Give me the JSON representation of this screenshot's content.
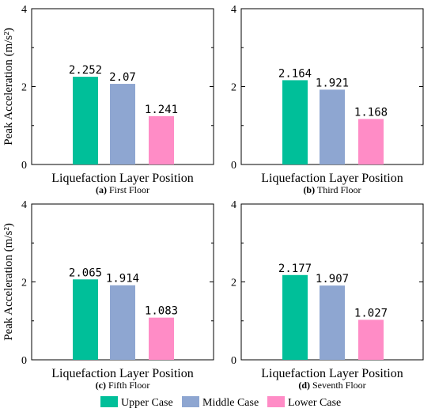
{
  "chart_data": [
    {
      "type": "bar",
      "caption_letter": "(a)",
      "caption_text": " First Floor",
      "categories": [
        "Liquefaction Layer Position"
      ],
      "series": [
        {
          "name": "Upper Case",
          "values": [
            2.252
          ],
          "labels": [
            "2.252"
          ]
        },
        {
          "name": "Middle Case",
          "values": [
            2.07
          ],
          "labels": [
            "2.07"
          ]
        },
        {
          "name": "Lower Case",
          "values": [
            1.241
          ],
          "labels": [
            "1.241"
          ]
        }
      ],
      "xlabel": "Liquefaction Layer Position",
      "ylabel": "Peak Acceleration (m/s²)",
      "ylim": [
        0,
        4
      ],
      "yticks": [
        0,
        2,
        4
      ]
    },
    {
      "type": "bar",
      "caption_letter": "(b)",
      "caption_text": " Third Floor",
      "categories": [
        "Liquefaction Layer Position"
      ],
      "series": [
        {
          "name": "Upper Case",
          "values": [
            2.164
          ],
          "labels": [
            "2.164"
          ]
        },
        {
          "name": "Middle Case",
          "values": [
            1.921
          ],
          "labels": [
            "1.921"
          ]
        },
        {
          "name": "Lower Case",
          "values": [
            1.168
          ],
          "labels": [
            "1.168"
          ]
        }
      ],
      "xlabel": "Liquefaction Layer Position",
      "ylabel": "",
      "ylim": [
        0,
        4
      ],
      "yticks": [
        0,
        2,
        4
      ]
    },
    {
      "type": "bar",
      "caption_letter": "(c)",
      "caption_text": " Fifth Floor",
      "categories": [
        "Liquefaction Layer Position"
      ],
      "series": [
        {
          "name": "Upper Case",
          "values": [
            2.065
          ],
          "labels": [
            "2.065"
          ]
        },
        {
          "name": "Middle Case",
          "values": [
            1.914
          ],
          "labels": [
            "1.914"
          ]
        },
        {
          "name": "Lower Case",
          "values": [
            1.083
          ],
          "labels": [
            "1.083"
          ]
        }
      ],
      "xlabel": "Liquefaction Layer Position",
      "ylabel": "Peak Acceleration (m/s²)",
      "ylim": [
        0,
        4
      ],
      "yticks": [
        0,
        2,
        4
      ]
    },
    {
      "type": "bar",
      "caption_letter": "(d)",
      "caption_text": " Seventh Floor",
      "categories": [
        "Liquefaction Layer Position"
      ],
      "series": [
        {
          "name": "Upper Case",
          "values": [
            2.177
          ],
          "labels": [
            "2.177"
          ]
        },
        {
          "name": "Middle Case",
          "values": [
            1.907
          ],
          "labels": [
            "1.907"
          ]
        },
        {
          "name": "Lower Case",
          "values": [
            1.027
          ],
          "labels": [
            "1.027"
          ]
        }
      ],
      "xlabel": "Liquefaction Layer Position",
      "ylabel": "",
      "ylim": [
        0,
        4
      ],
      "yticks": [
        0,
        2,
        4
      ]
    }
  ],
  "legend": {
    "placement": "bottom",
    "items": [
      {
        "name": "Upper Case",
        "color": "#00bf99"
      },
      {
        "name": "Middle Case",
        "color": "#8ea6d1"
      },
      {
        "name": "Lower Case",
        "color": "#ff8cc6"
      }
    ]
  },
  "colors": {
    "upper": "#00bf99",
    "middle": "#8ea6d1",
    "lower": "#ff8cc6"
  }
}
